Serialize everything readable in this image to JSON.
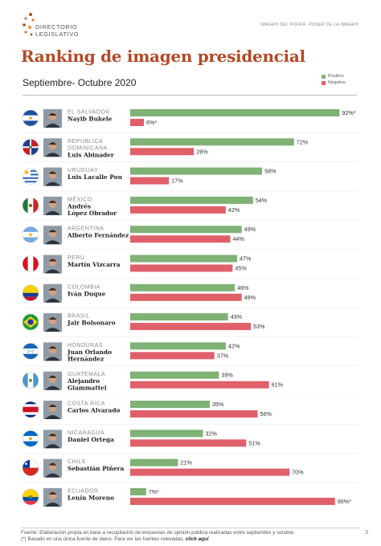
{
  "header": {
    "logo_text_line1": "DIRECTORIO",
    "logo_text_line2": "LEGISLATIVO",
    "tagline": "IMAGEN DEL PODER. PODER DE LA IMAGEN"
  },
  "title": "Ranking de imagen presidencial",
  "subtitle": "Septiembre- Octubre 2020",
  "legend": {
    "positive_label": "Positivo",
    "negative_label": "Negativo",
    "positive_color": "#7fb274",
    "negative_color": "#e0606a"
  },
  "chart_data": {
    "type": "bar",
    "orientation": "horizontal",
    "xlim": [
      0,
      100
    ],
    "series": [
      {
        "name": "Positivo",
        "color": "#7fb274"
      },
      {
        "name": "Negativo",
        "color": "#e0606a"
      }
    ],
    "rows": [
      {
        "country": "EL SALVADOR",
        "name": "Nayib Bukele",
        "positive": 92,
        "negative": 6,
        "positive_label": "92%*",
        "negative_label": "6%*",
        "flag": "el-salvador"
      },
      {
        "country": "REPÚBLICA DOMINICANA",
        "name": "Luis Abinader",
        "positive": 72,
        "negative": 28,
        "positive_label": "72%",
        "negative_label": "28%",
        "flag": "dominican-republic"
      },
      {
        "country": "URUGUAY",
        "name": "Luis Lacalle Pou",
        "positive": 58,
        "negative": 17,
        "positive_label": "58%",
        "negative_label": "17%",
        "flag": "uruguay"
      },
      {
        "country": "MÉXICO",
        "name": "Andrés López Obrador",
        "positive": 54,
        "negative": 42,
        "positive_label": "54%",
        "negative_label": "42%",
        "flag": "mexico"
      },
      {
        "country": "ARGENTINA",
        "name": "Alberto Fernández",
        "positive": 49,
        "negative": 44,
        "positive_label": "49%",
        "negative_label": "44%",
        "flag": "argentina"
      },
      {
        "country": "PERÚ",
        "name": "Martín Vizcarra",
        "positive": 47,
        "negative": 45,
        "positive_label": "47%",
        "negative_label": "45%",
        "flag": "peru"
      },
      {
        "country": "COLOMBIA",
        "name": "Iván Duque",
        "positive": 46,
        "negative": 49,
        "positive_label": "46%",
        "negative_label": "49%",
        "flag": "colombia"
      },
      {
        "country": "BRASIL",
        "name": "Jair Bolsonaro",
        "positive": 43,
        "negative": 53,
        "positive_label": "43%",
        "negative_label": "53%",
        "flag": "brazil"
      },
      {
        "country": "HONDURAS",
        "name": "Juan Orlando Hernández",
        "positive": 42,
        "negative": 37,
        "positive_label": "42%",
        "negative_label": "37%",
        "flag": "honduras"
      },
      {
        "country": "GUATEMALA",
        "name": "Alejandro Giammattei",
        "positive": 39,
        "negative": 61,
        "positive_label": "39%",
        "negative_label": "61%",
        "flag": "guatemala"
      },
      {
        "country": "COSTA RICA",
        "name": "Carlos Alvarado",
        "positive": 35,
        "negative": 56,
        "positive_label": "35%",
        "negative_label": "56%",
        "flag": "costa-rica"
      },
      {
        "country": "NICARAGUA",
        "name": "Daniel Ortega",
        "positive": 32,
        "negative": 51,
        "positive_label": "32%",
        "negative_label": "51%",
        "flag": "nicaragua"
      },
      {
        "country": "CHILE",
        "name": "Sebastián Piñera",
        "positive": 21,
        "negative": 70,
        "positive_label": "21%",
        "negative_label": "70%",
        "flag": "chile"
      },
      {
        "country": "ECUADOR",
        "name": "Lenín Moreno",
        "positive": 7,
        "negative": 90,
        "positive_label": "7%*",
        "negative_label": "90%*",
        "flag": "ecuador"
      }
    ]
  },
  "footer": {
    "line1": "Fuente: Elaboración propia en base a recopilación de encuestas de opinión pública realizadas entre septiembre y octubre.",
    "line2": "(*) Basado en una única fuente de datos. Para ver las fuentes relevadas,",
    "link": "click aquí",
    "page_number": "3"
  }
}
